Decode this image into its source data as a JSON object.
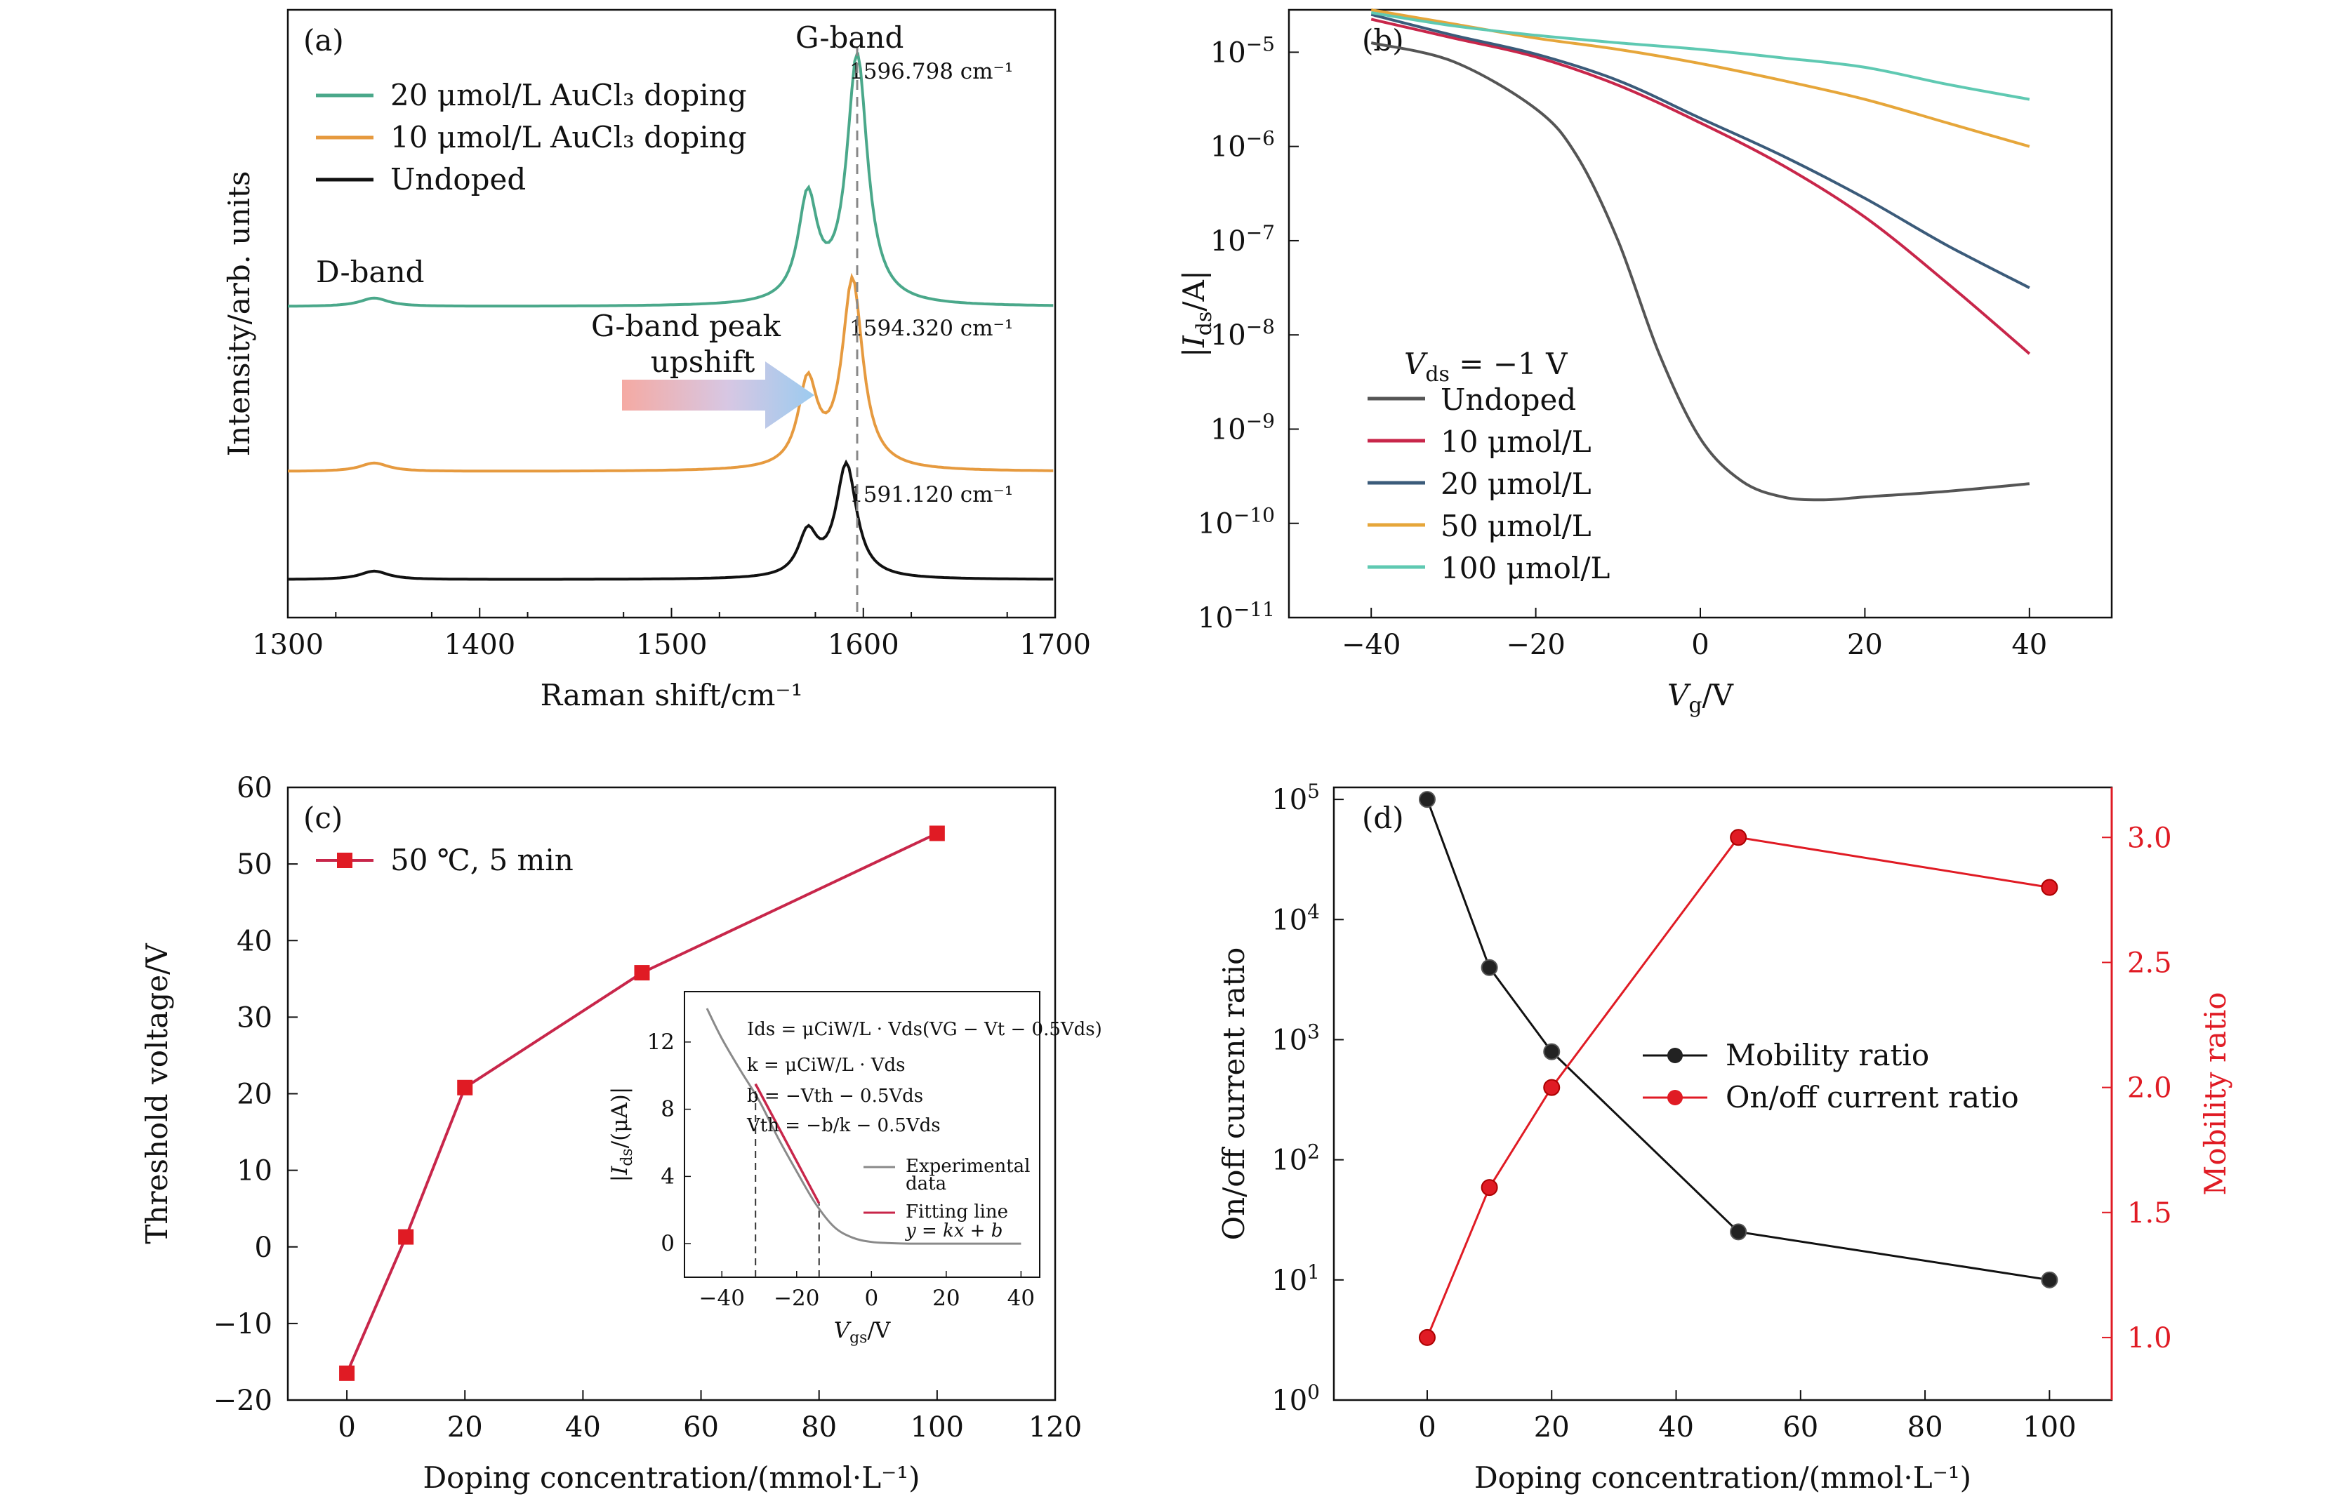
{
  "panels": [
    {
      "id": "a",
      "panel_label": "(a)",
      "chart_data": {
        "type": "line",
        "xlabel": "Raman shift/cm⁻¹",
        "ylabel": "Intensity/arb. units",
        "xlim": [
          1300,
          1700
        ],
        "xticks": [
          "1300",
          "1400",
          "1500",
          "1600",
          "1700"
        ],
        "series": [
          {
            "name": "20 μmol/L AuCl₃ doping",
            "color": "#4aa88a",
            "peak": 1596.798,
            "peak_label": "1596.798 cm⁻¹"
          },
          {
            "name": "10 μmol/L AuCl₃ doping",
            "color": "#e69a3f",
            "peak": 1594.32,
            "peak_label": "1594.320 cm⁻¹"
          },
          {
            "name": "Undoped",
            "color": "#111111",
            "peak": 1591.12,
            "peak_label": "1591.120 cm⁻¹"
          }
        ],
        "annotations": {
          "g_band": "G-band",
          "d_band": "D-band",
          "shift_line1": "G-band peak",
          "shift_line2": "upshift"
        }
      }
    },
    {
      "id": "b",
      "panel_label": "(b)",
      "chart_data": {
        "type": "line",
        "yscale": "log",
        "xlabel": "Vg/V",
        "ylabel": "|Ids/A|",
        "xlim": [
          -50,
          50
        ],
        "ylim_exp": [
          -11,
          -4.55
        ],
        "xticks": [
          -40,
          -20,
          0,
          20,
          40
        ],
        "yticks_exp": [
          -11,
          -10,
          -9,
          -8,
          -7,
          -6,
          -5
        ],
        "legend_title": "Vds = −1 V",
        "series": [
          {
            "name": "Undoped",
            "color": "#555555",
            "x": [
              -40,
              -30,
              -20,
              -15,
              -10,
              -5,
              0,
              5,
              10,
              15,
              20,
              30,
              40
            ],
            "log_y": [
              -4.9,
              -5.1,
              -5.6,
              -6.1,
              -7.0,
              -8.2,
              -9.1,
              -9.55,
              -9.72,
              -9.75,
              -9.72,
              -9.66,
              -9.58
            ]
          },
          {
            "name": "10 μmol/L",
            "color": "#c8264a",
            "x": [
              -40,
              -30,
              -20,
              -10,
              0,
              10,
              20,
              30,
              40
            ],
            "log_y": [
              -4.65,
              -4.85,
              -5.05,
              -5.35,
              -5.75,
              -6.2,
              -6.75,
              -7.45,
              -8.2
            ]
          },
          {
            "name": "20 μmol/L",
            "color": "#3b5b7a",
            "x": [
              -40,
              -30,
              -20,
              -10,
              0,
              10,
              20,
              30,
              40
            ],
            "log_y": [
              -4.6,
              -4.82,
              -5.02,
              -5.3,
              -5.7,
              -6.1,
              -6.55,
              -7.05,
              -7.5
            ]
          },
          {
            "name": "50 μmol/L",
            "color": "#e6a63a",
            "x": [
              -40,
              -30,
              -20,
              -10,
              0,
              10,
              20,
              30,
              40
            ],
            "log_y": [
              -4.55,
              -4.7,
              -4.85,
              -4.97,
              -5.12,
              -5.3,
              -5.5,
              -5.75,
              -6.0
            ]
          },
          {
            "name": "100 μmol/L",
            "color": "#5fc9b2",
            "x": [
              -40,
              -30,
              -20,
              -10,
              0,
              10,
              20,
              30,
              40
            ],
            "log_y": [
              -4.58,
              -4.72,
              -4.82,
              -4.9,
              -4.97,
              -5.06,
              -5.16,
              -5.34,
              -5.5
            ]
          }
        ]
      }
    },
    {
      "id": "c",
      "panel_label": "(c)",
      "chart_data": {
        "type": "line",
        "xlabel": "Doping concentration/(mmol·L⁻¹)",
        "ylabel": "Threshold voltage/V",
        "xlim": [
          -10,
          120
        ],
        "ylim": [
          -20,
          60
        ],
        "xticks": [
          0,
          20,
          40,
          60,
          80,
          100,
          120
        ],
        "yticks": [
          -20,
          -10,
          0,
          10,
          20,
          30,
          40,
          50,
          60
        ],
        "series": [
          {
            "name": "50 ℃, 5 min",
            "color": "#c8264a",
            "marker_color": "#e01b24",
            "x": [
              0,
              10,
              20,
              50,
              100
            ],
            "y": [
              -16.5,
              1.3,
              20.8,
              35.8,
              54
            ]
          }
        ],
        "inset": {
          "xlabel": "Vgs/V",
          "ylabel": "|Ids/(μA)|",
          "xlim": [
            -50,
            45
          ],
          "ylim": [
            -2,
            15
          ],
          "xticks": [
            -40,
            -20,
            0,
            20,
            40
          ],
          "yticks": [
            0,
            4,
            8,
            12
          ],
          "equations": [
            "Ids = μCiW/L · Vds(VG − Vt − 0.5Vds)",
            "k = μCiW/L · Vds",
            "b = −Vth − 0.5Vds",
            "Vth = −b/k − 0.5Vds"
          ],
          "legend": [
            "Experimental",
            "data",
            "Fitting line",
            "y = kx + b"
          ],
          "experimental": {
            "x": [
              -44,
              -40,
              -35,
              -30,
              -25,
              -20,
              -15,
              -10,
              -5,
              0,
              5,
              10,
              20,
              30,
              40
            ],
            "y": [
              14,
              12.2,
              10.3,
              8.5,
              6.3,
              4.3,
              2.4,
              1.0,
              0.35,
              0.1,
              0.03,
              0.0,
              0.0,
              0.0,
              0.0
            ]
          },
          "fit": {
            "x": [
              -31,
              -14
            ],
            "y": [
              9.5,
              2.4
            ]
          },
          "guides": [
            -31,
            -14
          ]
        }
      }
    },
    {
      "id": "d",
      "panel_label": "(d)",
      "chart_data": {
        "type": "line",
        "dual_axis": true,
        "xlabel": "Doping concentration/(mmol·L⁻¹)",
        "ylabel_left": "On/off current ratio",
        "ylabel_right": "Mobility ratio",
        "xlim": [
          -15,
          110
        ],
        "ylim_left_exp": [
          0,
          5.1
        ],
        "ylim_right": [
          0.75,
          3.2
        ],
        "xticks": [
          0,
          20,
          40,
          60,
          80,
          100
        ],
        "yticks_left_exp": [
          0,
          1,
          2,
          3,
          4,
          5
        ],
        "yticks_right": [
          "1.0",
          "1.5",
          "2.0",
          "2.5",
          "3.0"
        ],
        "series": [
          {
            "name": "Mobility ratio",
            "axis": "left",
            "color": "#111111",
            "x": [
              0,
              10,
              20,
              50,
              100
            ],
            "log_y": [
              5.0,
              3.6,
              2.9,
              1.4,
              1.0
            ]
          },
          {
            "name": "On/off current ratio",
            "axis": "right",
            "color": "#e01b24",
            "x": [
              0,
              10,
              20,
              50,
              100
            ],
            "y": [
              1.0,
              1.6,
              2.0,
              3.0,
              2.8
            ]
          }
        ]
      }
    }
  ]
}
